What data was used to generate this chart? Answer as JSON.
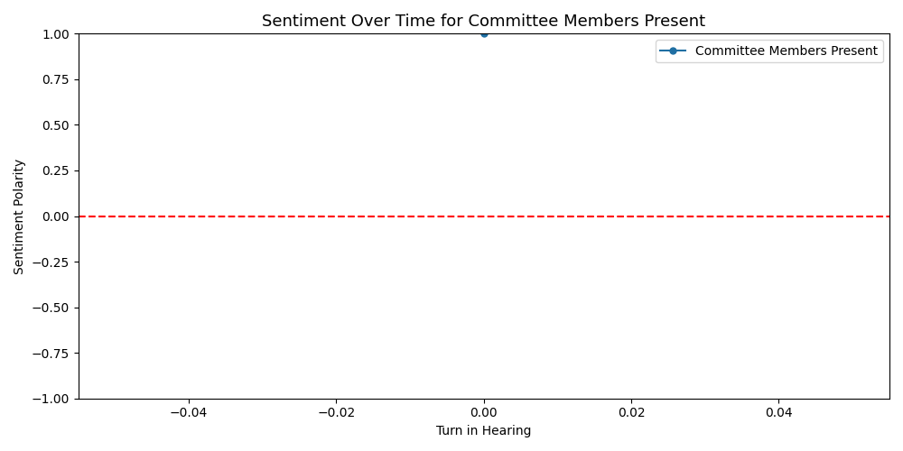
{
  "title": "Sentiment Over Time for Committee Members Present",
  "xlabel": "Turn in Hearing",
  "ylabel": "Sentiment Polarity",
  "xlim": [
    -0.055,
    0.055
  ],
  "ylim": [
    -1.0,
    1.0
  ],
  "x_data": [
    0.0
  ],
  "y_data": [
    1.0
  ],
  "line_color": "#1f6fa3",
  "marker": "o",
  "marker_size": 5,
  "legend_label": "Committee Members Present",
  "hline_y": 0.0,
  "hline_color": "red",
  "hline_style": "--",
  "hline_linewidth": 1.5,
  "background_color": "#ffffff",
  "figsize": [
    10,
    5
  ],
  "dpi": 100,
  "title_fontsize": 13,
  "label_fontsize": 10
}
